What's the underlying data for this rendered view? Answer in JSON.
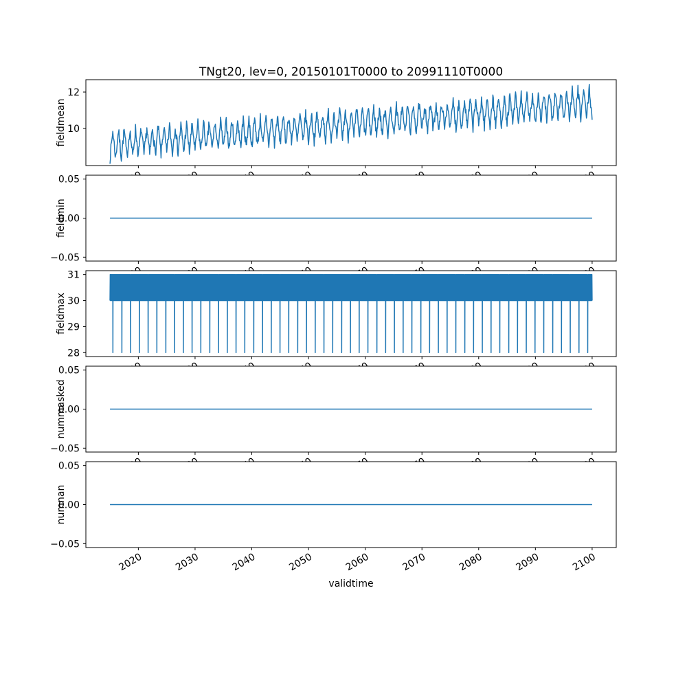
{
  "figure": {
    "title": "TNgt20, lev=0, 20150101T0000 to 20991110T0000",
    "xlabel": "validtime",
    "background": "#ffffff",
    "line_color": "#1f77b4",
    "frame_color": "#000000"
  },
  "x_axis": {
    "label": "validtime",
    "xlim": [
      2010.75,
      2104.25
    ],
    "data_x_range": [
      2015,
      2100
    ],
    "tick_values": [
      2020,
      2030,
      2040,
      2050,
      2060,
      2070,
      2080,
      2090,
      2100
    ],
    "tick_labels": [
      "2020",
      "2030",
      "2040",
      "2050",
      "2060",
      "2070",
      "2080",
      "2090",
      "2100"
    ],
    "tick_rotation_deg": 30
  },
  "chart_data": [
    {
      "type": "line",
      "ylabel": "fieldmean",
      "x_range": [
        2015,
        2100
      ],
      "ylim": [
        7.96,
        12.68
      ],
      "ytick_values": [
        10,
        12
      ],
      "ytick_labels": [
        "10",
        "12"
      ],
      "gen": "seasonal_trend",
      "trend": [
        9.1,
        11.4
      ],
      "amplitude": 0.75,
      "noise": 0.3,
      "samples_per_year": 12,
      "seed": 7,
      "description": "Jagged annual oscillation rising from about 8.2-10.0 in 2015 to about 10.3-12.5 by 2100"
    },
    {
      "type": "line",
      "ylabel": "fieldmin",
      "x_range": [
        2015,
        2100
      ],
      "ylim": [
        -0.055,
        0.055
      ],
      "ytick_values": [
        -0.05,
        0,
        0.05
      ],
      "ytick_labels": [
        "−0.05",
        "0.00",
        "0.05"
      ],
      "gen": "constant",
      "value": 0.0,
      "description": "Constant zero line from 2015 to 2100"
    },
    {
      "type": "line",
      "ylabel": "fieldmax",
      "x_range": [
        2015,
        2100
      ],
      "ylim": [
        27.85,
        31.15
      ],
      "ytick_values": [
        28,
        29,
        30,
        31
      ],
      "ytick_labels": [
        "28",
        "29",
        "30",
        "31"
      ],
      "gen": "band_spikes",
      "high": 31,
      "base": 30,
      "spike_low": 28,
      "spike_interval": 1.55,
      "samples_per_year": 24,
      "description": "Dense oscillation filling the 30-31 band with regularly spaced thin spikes down to 28"
    },
    {
      "type": "line",
      "ylabel": "nummasked",
      "x_range": [
        2015,
        2100
      ],
      "ylim": [
        -0.055,
        0.055
      ],
      "ytick_values": [
        -0.05,
        0,
        0.05
      ],
      "ytick_labels": [
        "−0.05",
        "0.00",
        "0.05"
      ],
      "gen": "constant",
      "value": 0.0,
      "description": "Constant zero line from 2015 to 2100"
    },
    {
      "type": "line",
      "ylabel": "numnan",
      "x_range": [
        2015,
        2100
      ],
      "ylim": [
        -0.055,
        0.055
      ],
      "ytick_values": [
        -0.05,
        0,
        0.05
      ],
      "ytick_labels": [
        "−0.05",
        "0.00",
        "0.05"
      ],
      "gen": "constant",
      "value": 0.0,
      "description": "Constant zero line from 2015 to 2100"
    }
  ]
}
